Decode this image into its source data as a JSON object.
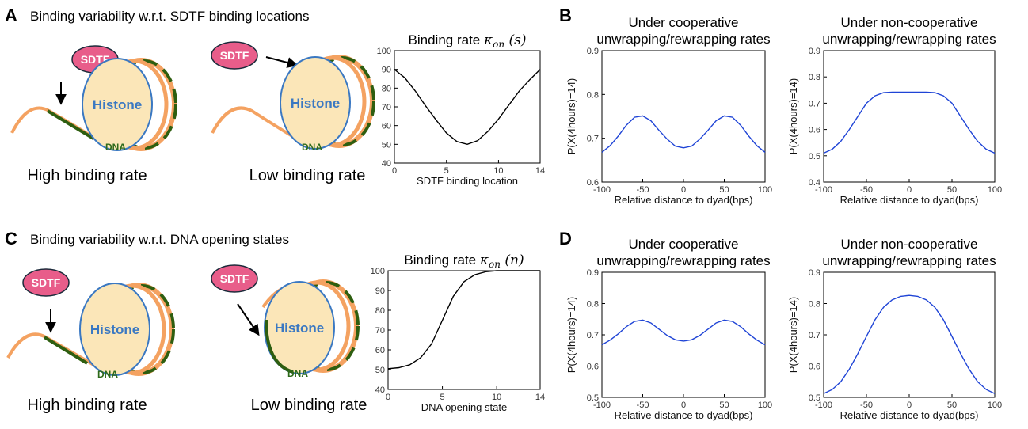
{
  "panels": {
    "A": {
      "letter": "A",
      "heading": "Binding variability w.r.t. SDTF binding locations"
    },
    "B": {
      "letter": "B"
    },
    "C": {
      "letter": "C",
      "heading": "Binding variability w.r.t. DNA opening states"
    },
    "D": {
      "letter": "D"
    }
  },
  "illustration": {
    "sdtf_label": "SDTF",
    "histone_label": "Histone",
    "dna_label": "DNA",
    "high_rate_caption": "High binding rate",
    "low_rate_caption": "Low binding rate"
  },
  "colors": {
    "sdtf_fill": "#e85d8a",
    "histone_fill": "#fbe6b8",
    "histone_edge": "#3a78c2",
    "dna_orange": "#f4a261",
    "dna_green": "#2e5e10",
    "curve_black": "#000000",
    "curve_blue": "#1f44d6"
  },
  "chart_data": [
    {
      "id": "rate-location",
      "type": "line",
      "title_prefix": "Binding rate ",
      "title_math": "κ",
      "title_sub": "on",
      "title_arg": " (s)",
      "xlabel": "SDTF binding location",
      "xlim": [
        0,
        14
      ],
      "ylim": [
        40,
        100
      ],
      "xticks": [
        0,
        5,
        10,
        14
      ],
      "yticks": [
        40,
        50,
        60,
        70,
        80,
        90,
        100
      ],
      "x": [
        0,
        1,
        2,
        3,
        4,
        5,
        6,
        7,
        8,
        9,
        10,
        11,
        12,
        13,
        14
      ],
      "y": [
        90,
        85.5,
        78.5,
        70.5,
        63,
        56,
        51.5,
        50,
        52,
        57,
        63.5,
        71,
        78.5,
        84.5,
        90
      ]
    },
    {
      "id": "rate-opening",
      "type": "line",
      "title_prefix": "Binding rate ",
      "title_math": "κ",
      "title_sub": "on",
      "title_arg": " (n)",
      "xlabel": "DNA opening state",
      "xlim": [
        0,
        14
      ],
      "ylim": [
        40,
        100
      ],
      "xticks": [
        0,
        5,
        10,
        14
      ],
      "yticks": [
        40,
        50,
        60,
        70,
        80,
        90,
        100
      ],
      "x": [
        0,
        1,
        2,
        3,
        4,
        5,
        6,
        7,
        8,
        9,
        10,
        11,
        12,
        13,
        14
      ],
      "y": [
        50.5,
        51,
        52.5,
        56,
        63,
        75,
        87,
        94.5,
        98,
        99.5,
        100,
        100,
        100,
        100,
        100
      ]
    },
    {
      "id": "B-coop",
      "type": "line",
      "title_lines": [
        "Under cooperative",
        "unwrapping/rewrapping rates"
      ],
      "xlabel": "Relative distance to dyad(bps)",
      "ylabel": "P(X(4hours)=14)",
      "xlim": [
        -100,
        100
      ],
      "ylim": [
        0.6,
        0.9
      ],
      "xticks": [
        -100,
        -50,
        0,
        50,
        100
      ],
      "yticks": [
        0.6,
        0.7,
        0.8,
        0.9
      ],
      "x": [
        -100,
        -90,
        -80,
        -70,
        -60,
        -50,
        -40,
        -30,
        -20,
        -10,
        0,
        10,
        20,
        30,
        40,
        50,
        60,
        70,
        80,
        90,
        100
      ],
      "y": [
        0.668,
        0.683,
        0.705,
        0.73,
        0.748,
        0.751,
        0.74,
        0.718,
        0.698,
        0.682,
        0.678,
        0.682,
        0.698,
        0.718,
        0.74,
        0.751,
        0.748,
        0.73,
        0.705,
        0.683,
        0.668
      ]
    },
    {
      "id": "B-noncoop",
      "type": "line",
      "title_lines": [
        "Under non-cooperative",
        "unwrapping/rewrapping rates"
      ],
      "xlabel": "Relative distance to dyad(bps)",
      "ylabel": "P(X(4hours)=14)",
      "xlim": [
        -100,
        100
      ],
      "ylim": [
        0.4,
        0.9
      ],
      "xticks": [
        -100,
        -50,
        0,
        50,
        100
      ],
      "yticks": [
        0.4,
        0.5,
        0.6,
        0.7,
        0.8,
        0.9
      ],
      "x": [
        -100,
        -90,
        -80,
        -70,
        -60,
        -50,
        -40,
        -30,
        -20,
        -10,
        0,
        10,
        20,
        30,
        40,
        50,
        60,
        70,
        80,
        90,
        100
      ],
      "y": [
        0.51,
        0.525,
        0.555,
        0.6,
        0.65,
        0.7,
        0.728,
        0.74,
        0.742,
        0.742,
        0.742,
        0.742,
        0.742,
        0.74,
        0.728,
        0.7,
        0.65,
        0.6,
        0.555,
        0.525,
        0.51
      ]
    },
    {
      "id": "D-coop",
      "type": "line",
      "title_lines": [
        "Under cooperative",
        "unwrapping/rewrapping rates"
      ],
      "xlabel": "Relative distance to dyad(bps)",
      "ylabel": "P(X(4hours)=14)",
      "xlim": [
        -100,
        100
      ],
      "ylim": [
        0.5,
        0.9
      ],
      "xticks": [
        -100,
        -50,
        0,
        50,
        100
      ],
      "yticks": [
        0.5,
        0.6,
        0.7,
        0.8,
        0.9
      ],
      "x": [
        -100,
        -90,
        -80,
        -70,
        -60,
        -50,
        -40,
        -30,
        -20,
        -10,
        0,
        10,
        20,
        30,
        40,
        50,
        60,
        70,
        80,
        90,
        100
      ],
      "y": [
        0.668,
        0.683,
        0.703,
        0.726,
        0.743,
        0.747,
        0.738,
        0.718,
        0.698,
        0.684,
        0.68,
        0.684,
        0.698,
        0.718,
        0.738,
        0.747,
        0.743,
        0.726,
        0.703,
        0.683,
        0.668
      ]
    },
    {
      "id": "D-noncoop",
      "type": "line",
      "title_lines": [
        "Under non-cooperative",
        "unwrapping/rewrapping rates"
      ],
      "xlabel": "Relative distance to dyad(bps)",
      "ylabel": "P(X(4hours)=14)",
      "xlim": [
        -100,
        100
      ],
      "ylim": [
        0.5,
        0.9
      ],
      "xticks": [
        -100,
        -50,
        0,
        50,
        100
      ],
      "yticks": [
        0.5,
        0.6,
        0.7,
        0.8,
        0.9
      ],
      "x": [
        -100,
        -90,
        -80,
        -70,
        -60,
        -50,
        -40,
        -30,
        -20,
        -10,
        0,
        10,
        20,
        30,
        40,
        50,
        60,
        70,
        80,
        90,
        100
      ],
      "y": [
        0.512,
        0.525,
        0.55,
        0.59,
        0.64,
        0.695,
        0.748,
        0.788,
        0.812,
        0.823,
        0.826,
        0.823,
        0.812,
        0.788,
        0.748,
        0.695,
        0.64,
        0.59,
        0.55,
        0.525,
        0.512
      ]
    }
  ]
}
